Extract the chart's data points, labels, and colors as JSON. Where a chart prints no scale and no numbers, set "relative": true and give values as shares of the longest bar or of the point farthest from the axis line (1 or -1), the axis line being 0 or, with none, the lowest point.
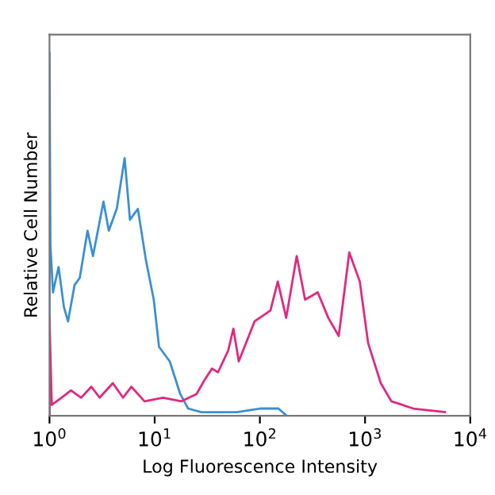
{
  "chart_data": {
    "type": "line",
    "xlabel": "Log Fluorescence Intensity",
    "ylabel": "Relative Cell Number",
    "relative": true,
    "log": "x",
    "xlim": [
      1,
      10000
    ],
    "xticks": [
      {
        "value": 1,
        "label": "10$^{0}$"
      },
      {
        "value": 10,
        "label": "10$^{1}$"
      },
      {
        "value": 100,
        "label": "10$^{2}$"
      },
      {
        "value": 1000,
        "label": "10$^{3}$"
      },
      {
        "value": 10000,
        "label": "10$^{4}$"
      }
    ],
    "tick_labels": "x",
    "grid": false,
    "legend": false,
    "marker": "none",
    "line_style": "solid",
    "series": [
      {
        "color": "#3a8fd6",
        "x": [
          1.0,
          1.0,
          1.02,
          1.08,
          1.22,
          1.37,
          1.5,
          1.73,
          1.94,
          2.3,
          2.59,
          3.26,
          3.66,
          4.36,
          5.18,
          5.82,
          6.92,
          8.24,
          9.8,
          11,
          13.9,
          17.5,
          20.8,
          27.8,
          60,
          100,
          150,
          180
        ],
        "values": [
          0,
          1.0,
          0.47,
          0.34,
          0.41,
          0.3,
          0.26,
          0.36,
          0.38,
          0.51,
          0.44,
          0.59,
          0.51,
          0.57,
          0.71,
          0.54,
          0.57,
          0.43,
          0.32,
          0.19,
          0.15,
          0.06,
          0.02,
          0.01,
          0.01,
          0.02,
          0.02,
          0
        ]
      },
      {
        "color": "#e0287f",
        "x": [
          1.0,
          1.0,
          1.05,
          1.3,
          1.6,
          2,
          2.5,
          3,
          4,
          5,
          6,
          8,
          12,
          18,
          25,
          30,
          35,
          40,
          50,
          56,
          63,
          89,
          126,
          148,
          178,
          224,
          269,
          355,
          447,
          562,
          708,
          891,
          1070,
          1410,
          1780,
          2880,
          5750
        ],
        "values": [
          0,
          0.27,
          0.03,
          0.05,
          0.07,
          0.05,
          0.08,
          0.05,
          0.09,
          0.05,
          0.08,
          0.04,
          0.05,
          0.04,
          0.06,
          0.1,
          0.13,
          0.12,
          0.18,
          0.24,
          0.15,
          0.26,
          0.29,
          0.37,
          0.27,
          0.44,
          0.32,
          0.34,
          0.27,
          0.22,
          0.45,
          0.37,
          0.2,
          0.09,
          0.04,
          0.02,
          0.01
        ]
      }
    ]
  }
}
